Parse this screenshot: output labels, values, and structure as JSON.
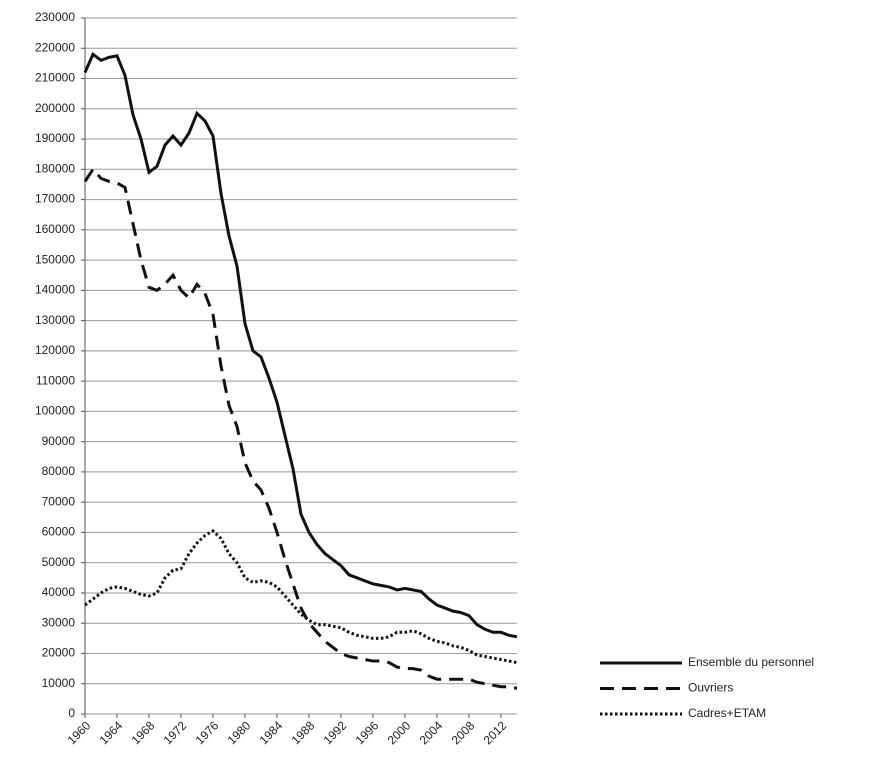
{
  "chart_data": {
    "type": "line",
    "x": [
      1960,
      1961,
      1962,
      1963,
      1964,
      1965,
      1966,
      1967,
      1968,
      1969,
      1970,
      1971,
      1972,
      1973,
      1974,
      1975,
      1976,
      1977,
      1978,
      1979,
      1980,
      1981,
      1982,
      1983,
      1984,
      1985,
      1986,
      1987,
      1988,
      1989,
      1990,
      1991,
      1992,
      1993,
      1994,
      1995,
      1996,
      1997,
      1998,
      1999,
      2000,
      2001,
      2002,
      2003,
      2004,
      2005,
      2006,
      2007,
      2008,
      2009,
      2010,
      2011,
      2012,
      2013,
      2014
    ],
    "series": [
      {
        "name": "Ensemble du personnel",
        "color": "#111111",
        "style": "solid",
        "values": [
          212000,
          218000,
          216000,
          217000,
          217500,
          211000,
          198000,
          190000,
          179000,
          181000,
          188000,
          191000,
          188000,
          192000,
          198500,
          196000,
          191000,
          172000,
          158000,
          148000,
          129000,
          120000,
          118000,
          111000,
          103000,
          92000,
          81000,
          66000,
          60000,
          56000,
          53000,
          51000,
          49000,
          46000,
          45000,
          44000,
          43000,
          42500,
          42000,
          41000,
          41500,
          41000,
          40500,
          38000,
          36000,
          35000,
          34000,
          33500,
          32500,
          29500,
          28000,
          27000,
          27000,
          26000,
          25500
        ]
      },
      {
        "name": "Ouvriers",
        "color": "#111111",
        "style": "dashed",
        "values": [
          176000,
          180000,
          177000,
          176000,
          175500,
          174000,
          162000,
          150000,
          141000,
          140000,
          142000,
          145000,
          140000,
          137500,
          142000,
          139000,
          132000,
          115000,
          102000,
          95000,
          83000,
          77000,
          74000,
          68000,
          60000,
          51000,
          43000,
          35000,
          30000,
          27000,
          24000,
          22000,
          20000,
          19000,
          18500,
          18000,
          17500,
          17500,
          17000,
          15500,
          15000,
          15000,
          14500,
          12500,
          11500,
          11500,
          11500,
          11500,
          11500,
          10500,
          10000,
          9500,
          9000,
          9000,
          8500
        ]
      },
      {
        "name": "Cadres+ETAM",
        "color": "#111111",
        "style": "dotted",
        "values": [
          36000,
          38000,
          40000,
          41500,
          42000,
          41500,
          40500,
          39500,
          39000,
          40000,
          45000,
          47500,
          48000,
          53000,
          56500,
          59000,
          60500,
          58000,
          53000,
          50000,
          45000,
          43500,
          44000,
          43500,
          42000,
          39000,
          36000,
          33000,
          31000,
          29500,
          29500,
          29000,
          28500,
          27000,
          26000,
          25500,
          25000,
          25000,
          25500,
          27000,
          27000,
          27500,
          26500,
          25000,
          24000,
          23500,
          22500,
          22000,
          21000,
          19500,
          19000,
          18500,
          18000,
          17500,
          17000
        ]
      }
    ],
    "xlim": [
      1960,
      2014
    ],
    "xticks": [
      1960,
      1964,
      1968,
      1972,
      1976,
      1980,
      1984,
      1988,
      1992,
      1996,
      2000,
      2004,
      2008,
      2012
    ],
    "ylim": [
      0,
      230000
    ],
    "yticks": [
      0,
      10000,
      20000,
      30000,
      40000,
      50000,
      60000,
      70000,
      80000,
      90000,
      100000,
      110000,
      120000,
      130000,
      140000,
      150000,
      160000,
      170000,
      180000,
      190000,
      200000,
      210000,
      220000,
      230000
    ],
    "grid": true
  }
}
